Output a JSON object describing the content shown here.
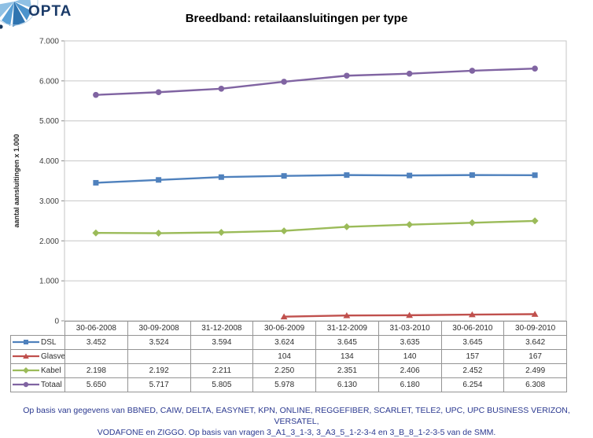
{
  "logo": {
    "text": "OPTA"
  },
  "title": "Breedband: retailaansluitingen per type",
  "chart_data": {
    "type": "line",
    "categories": [
      "30-06-2008",
      "30-09-2008",
      "31-12-2008",
      "30-06-2009",
      "31-12-2009",
      "31-03-2010",
      "30-06-2010",
      "30-09-2010"
    ],
    "series": [
      {
        "name": "DSL",
        "color": "#4F81BD",
        "marker": "square",
        "values": [
          3452,
          3524,
          3594,
          3624,
          3645,
          3635,
          3645,
          3642
        ]
      },
      {
        "name": "Glasvezel",
        "color": "#C0504D",
        "marker": "triangle",
        "values": [
          null,
          null,
          null,
          104,
          134,
          140,
          157,
          167
        ]
      },
      {
        "name": "Kabel",
        "color": "#9BBB59",
        "marker": "diamond",
        "values": [
          2198,
          2192,
          2211,
          2250,
          2351,
          2406,
          2452,
          2499
        ]
      },
      {
        "name": "Totaal",
        "color": "#8064A2",
        "marker": "circle",
        "values": [
          5650,
          5717,
          5805,
          5978,
          6130,
          6180,
          6254,
          6308
        ]
      }
    ],
    "title": "Breedband: retailaansluitingen per type",
    "xlabel": "",
    "ylabel": "aantal aansluitingen x 1.000",
    "ylim": [
      0,
      7000
    ],
    "ytick_step": 1000,
    "ytick_labels": [
      "0",
      "1.000",
      "2.000",
      "3.000",
      "4.000",
      "5.000",
      "6.000",
      "7.000"
    ],
    "grid": true,
    "legend_position": "table-left",
    "gridline_color": "#C6C6C6",
    "axis_text_color": "#3d3d3d"
  },
  "table": {
    "rows": [
      {
        "label": "DSL",
        "cells": [
          "3.452",
          "3.524",
          "3.594",
          "3.624",
          "3.645",
          "3.635",
          "3.645",
          "3.642"
        ]
      },
      {
        "label": "Glasvezel",
        "cells": [
          "",
          "",
          "",
          "104",
          "134",
          "140",
          "157",
          "167"
        ]
      },
      {
        "label": "Kabel",
        "cells": [
          "2.198",
          "2.192",
          "2.211",
          "2.250",
          "2.351",
          "2.406",
          "2.452",
          "2.499"
        ]
      },
      {
        "label": "Totaal",
        "cells": [
          "5.650",
          "5.717",
          "5.805",
          "5.978",
          "6.130",
          "6.180",
          "6.254",
          "6.308"
        ]
      }
    ]
  },
  "footer": {
    "lines": [
      "Op basis van gegevens van BBNED, CAIW, DELTA, EASYNET, KPN, ONLINE, REGGEFIBER, SCARLET, TELE2, UPC, UPC BUSINESS VERIZON, VERSATEL,",
      "VODAFONE en ZIGGO. Op basis van vragen 3_A1_3_1-3, 3_A3_5_1-2-3-4 en 3_B_8_1-2-3-5 van de SMM."
    ]
  }
}
